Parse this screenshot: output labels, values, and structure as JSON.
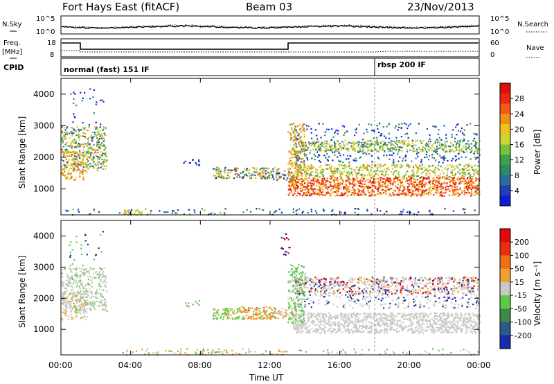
{
  "header": {
    "title": "Fort Hays East (fitACF)",
    "beam": "Beam 03",
    "date": "23/Nov/2013"
  },
  "noise_panel": {
    "left_label": "N.Sky",
    "left_ticks": [
      "10^5",
      "10^0"
    ],
    "right_label": "N.Search",
    "right_ticks": [
      "10^5",
      "10^0"
    ]
  },
  "freq_panel": {
    "left_label_1": "Freq.",
    "left_label_2": "[MHz]",
    "left_ticks": [
      "18",
      "8"
    ],
    "right_label": "Nave",
    "right_ticks": [
      "60",
      "0"
    ]
  },
  "cpid_panel": {
    "label": "CPID",
    "modes": [
      {
        "name": "normal (fast) 151 IF",
        "start_hour": 0
      },
      {
        "name": "rbsp 200 IF",
        "start_hour": 18
      }
    ]
  },
  "chart_data": [
    {
      "type": "heatmap",
      "name": "Power",
      "ylabel": "Slant Range [km]",
      "yticks": [
        "4000",
        "3000",
        "2000",
        "1000"
      ],
      "ylim": [
        180,
        4500
      ],
      "xlim": [
        0,
        24
      ],
      "colorbar_label": "Power [dB]",
      "colorbar_ticks": [
        "28",
        "24",
        "20",
        "16",
        "12",
        "8",
        "4"
      ],
      "colorbar_colors": [
        "#0a1ed8",
        "#1f3fb4",
        "#2a6e9a",
        "#2f8a6a",
        "#3aa24a",
        "#7ac23a",
        "#c8d830",
        "#f0c020",
        "#f09018",
        "#f05a14",
        "#e82a10",
        "#e0100c"
      ]
    },
    {
      "type": "heatmap",
      "name": "Velocity",
      "ylabel": "Slant Range [km]",
      "yticks": [
        "4000",
        "3000",
        "2000",
        "1000"
      ],
      "ylim": [
        180,
        4500
      ],
      "xlim": [
        0,
        24
      ],
      "xlabel": "Time UT",
      "xticks": [
        "00:00",
        "04:00",
        "08:00",
        "12:00",
        "16:00",
        "20:00",
        "00:00"
      ],
      "colorbar_label": "Velocity [m s⁻¹]",
      "colorbar_ticks": [
        "200",
        "100",
        "50",
        "15",
        "-15",
        "-50",
        "-100",
        "-200"
      ],
      "colorbar_colors": [
        "#1a2aa8",
        "#2a5a88",
        "#3a8a4a",
        "#5ec84a",
        "#c8c8c4",
        "#f0a030",
        "#f07018",
        "#e83010",
        "#e00808"
      ]
    }
  ]
}
